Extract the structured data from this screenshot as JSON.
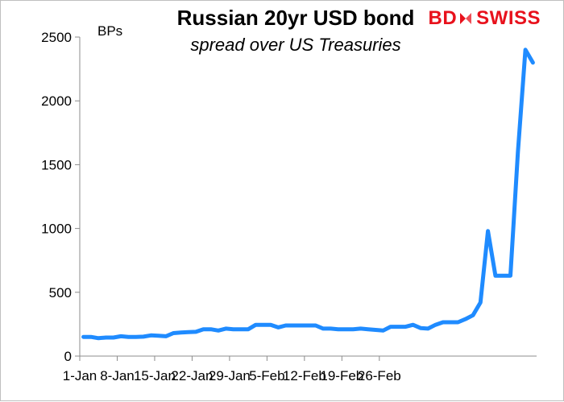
{
  "brand": {
    "part1": "BD",
    "part2": "SWISS",
    "color": "#e8111c"
  },
  "chart_data": {
    "type": "line",
    "title": "Russian 20yr USD bond",
    "subtitle": "spread over US Treasuries",
    "ylabel": "BPs",
    "xlabel": "",
    "ylim": [
      0,
      2500
    ],
    "yticks": [
      0,
      500,
      1000,
      1500,
      2000,
      2500
    ],
    "xticks": [
      {
        "index": 0,
        "label": "1-Jan"
      },
      {
        "index": 5,
        "label": "8-Jan"
      },
      {
        "index": 10,
        "label": "15-Jan"
      },
      {
        "index": 15,
        "label": "22-Jan"
      },
      {
        "index": 20,
        "label": "29-Jan"
      },
      {
        "index": 25,
        "label": "5-Feb"
      },
      {
        "index": 30,
        "label": "12-Feb"
      },
      {
        "index": 35,
        "label": "19-Feb"
      },
      {
        "index": 40,
        "label": "26-Feb"
      }
    ],
    "grid": false,
    "line_color": "#1f8bff",
    "series": [
      {
        "values": [
          150,
          150,
          140,
          145,
          145,
          155,
          150,
          150,
          152,
          162,
          160,
          155,
          180,
          185,
          188,
          190,
          210,
          210,
          200,
          215,
          210,
          210,
          210,
          245,
          245,
          245,
          225,
          240,
          240,
          240,
          240,
          240,
          215,
          215,
          210,
          210,
          210,
          215,
          210,
          205,
          200,
          230,
          230,
          230,
          245,
          220,
          215,
          245,
          265,
          265,
          265,
          290,
          320,
          420,
          980,
          630,
          630,
          630,
          1600,
          2400,
          2300
        ]
      }
    ]
  }
}
